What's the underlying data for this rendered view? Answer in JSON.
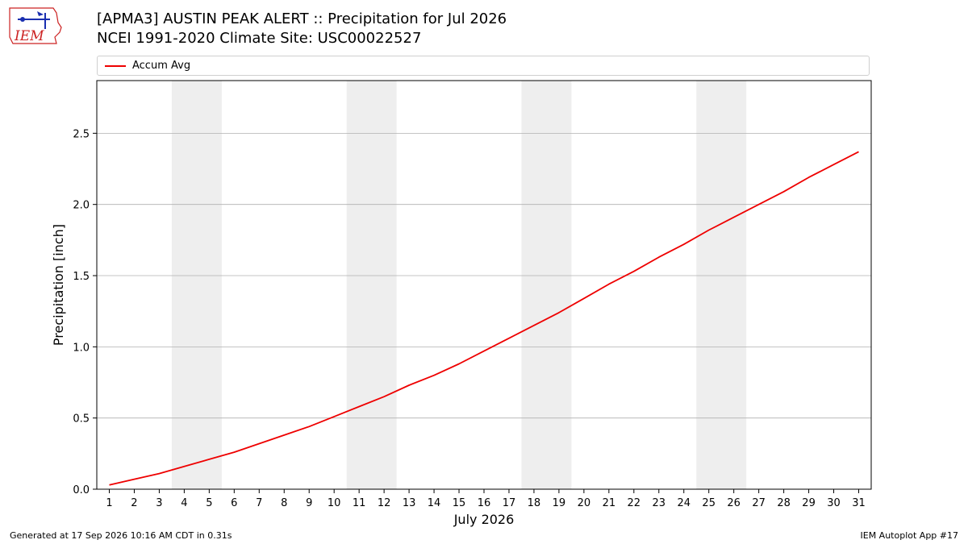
{
  "header": {
    "title_line1": "[APMA3] AUSTIN PEAK ALERT :: Precipitation for Jul 2026",
    "title_line2": "NCEI 1991-2020 Climate Site: USC00022527",
    "logo_text": "IEM"
  },
  "footer": {
    "generated": "Generated at 17 Sep 2026 10:16 AM CDT in 0.31s",
    "app": "IEM Autoplot App #17"
  },
  "colors": {
    "line": "#ee0000",
    "weekend": "#eeeeee",
    "grid": "#b0b0b0"
  },
  "chart_data": {
    "type": "line",
    "xlabel": "July 2026",
    "ylabel": "Precipitation [inch]",
    "xlim": [
      0.5,
      31.5
    ],
    "ylim": [
      0,
      2.87
    ],
    "yticks": [
      0.0,
      0.5,
      1.0,
      1.5,
      2.0,
      2.5
    ],
    "ytick_labels": [
      "0.0",
      "0.5",
      "1.0",
      "1.5",
      "2.0",
      "2.5"
    ],
    "x": [
      1,
      2,
      3,
      4,
      5,
      6,
      7,
      8,
      9,
      10,
      11,
      12,
      13,
      14,
      15,
      16,
      17,
      18,
      19,
      20,
      21,
      22,
      23,
      24,
      25,
      26,
      27,
      28,
      29,
      30,
      31
    ],
    "x_tick_labels": [
      "1",
      "2",
      "3",
      "4",
      "5",
      "6",
      "7",
      "8",
      "9",
      "10",
      "11",
      "12",
      "13",
      "14",
      "15",
      "16",
      "17",
      "18",
      "19",
      "20",
      "21",
      "22",
      "23",
      "24",
      "25",
      "26",
      "27",
      "28",
      "29",
      "30",
      "31"
    ],
    "weekends": [
      [
        3.5,
        5.5
      ],
      [
        10.5,
        12.5
      ],
      [
        17.5,
        19.5
      ],
      [
        24.5,
        26.5
      ]
    ],
    "grid": "y",
    "legend_position": "top",
    "series": [
      {
        "name": "Accum Avg",
        "values": [
          0.03,
          0.07,
          0.11,
          0.16,
          0.21,
          0.26,
          0.32,
          0.38,
          0.44,
          0.51,
          0.58,
          0.65,
          0.73,
          0.8,
          0.88,
          0.97,
          1.06,
          1.15,
          1.24,
          1.34,
          1.44,
          1.53,
          1.63,
          1.72,
          1.82,
          1.91,
          2.0,
          2.09,
          2.19,
          2.28,
          2.37
        ]
      }
    ]
  }
}
